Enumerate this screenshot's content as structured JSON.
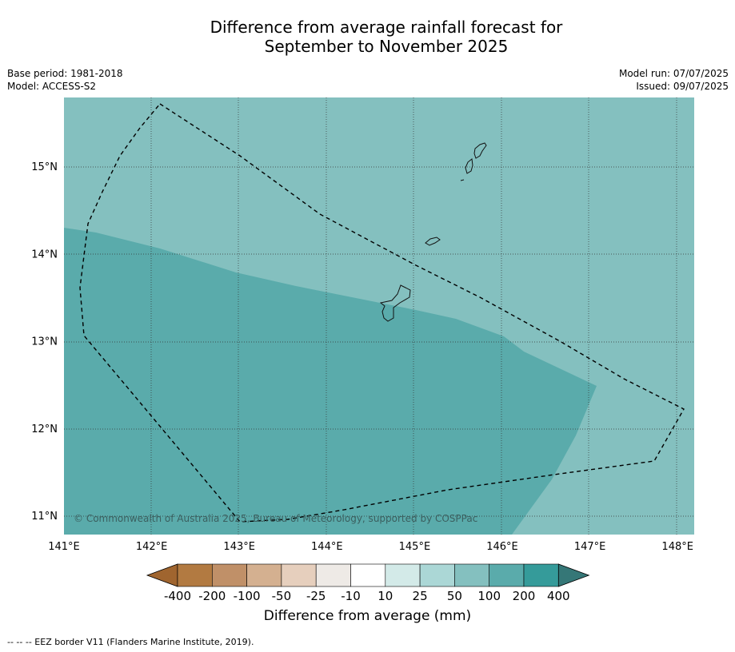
{
  "title_line1": "Difference from average rainfall forecast for",
  "title_line2": "September to November 2025",
  "base_period": "Base period: 1981-2018",
  "model": "Model: ACCESS-S2",
  "model_run": "Model run: 07/07/2025",
  "issued": "Issued: 09/07/2025",
  "copyright": "© Commonwealth of Australia 2025, Bureau of Meteorology, supported by COSPPac",
  "lon_ticks": [
    "141°E",
    "142°E",
    "143°E",
    "144°E",
    "145°E",
    "146°E",
    "147°E",
    "148°E"
  ],
  "lat_ticks": [
    "15°N",
    "14°N",
    "13°N",
    "12°N",
    "11°N"
  ],
  "colorbar": {
    "labels": [
      "-400",
      "-200",
      "-100",
      "-50",
      "-25",
      "-10",
      "10",
      "25",
      "50",
      "100",
      "200",
      "400"
    ],
    "colors": [
      "#a0652f",
      "#b27a41",
      "#c09068",
      "#d4b090",
      "#e6cfbd",
      "#eeeae6",
      "#ffffff",
      "#d3eae8",
      "#abd7d6",
      "#84c0bf",
      "#5aabab",
      "#359b9a",
      "#357777"
    ],
    "title": "Difference from average (mm)"
  },
  "map_colors": {
    "band_50_100": "#84c0bf",
    "band_100_200": "#5aabab"
  },
  "footer": "--  --  -- EEZ border V11 (Flanders Marine Institute, 2019)."
}
